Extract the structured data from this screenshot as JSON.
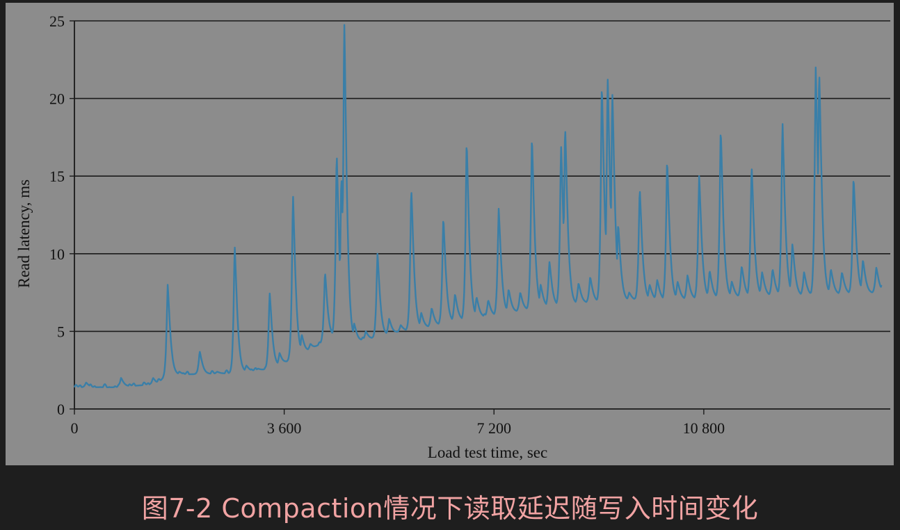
{
  "caption": "图7-2 Compaction情况下读取延迟随写入时间变化",
  "colors": {
    "background": "#1e1e1e",
    "panel": "#8c8c8c",
    "line": "#3a7fa8",
    "grid": "#1a1a1a",
    "caption": "#f1a3a3"
  },
  "chart_data": {
    "type": "line",
    "xlabel": "Load test time, sec",
    "ylabel": "Read latency, ms",
    "xlim": [
      0,
      14000
    ],
    "ylim": [
      0,
      25
    ],
    "xticks": [
      0,
      3600,
      7200,
      10800
    ],
    "xtick_labels": [
      "0",
      "3 600",
      "7 200",
      "10 800"
    ],
    "yticks": [
      0,
      5,
      10,
      15,
      20,
      25
    ],
    "ytick_labels": [
      "0",
      "5",
      "10",
      "15",
      "20",
      "25"
    ],
    "grid": "horizontal",
    "series": [
      {
        "baseline": [
          [
            0,
            1.4
          ],
          [
            700,
            1.4
          ],
          [
            1400,
            1.6
          ],
          [
            1600,
            2.2
          ],
          [
            2700,
            2.3
          ],
          [
            3400,
            2.6
          ],
          [
            3900,
            3.5
          ],
          [
            4500,
            4.8
          ],
          [
            4800,
            4.3
          ],
          [
            5200,
            4.6
          ],
          [
            5600,
            5.0
          ],
          [
            6000,
            5.2
          ],
          [
            6600,
            5.7
          ],
          [
            7200,
            6.0
          ],
          [
            7800,
            6.4
          ],
          [
            8400,
            6.7
          ],
          [
            9000,
            6.9
          ],
          [
            9600,
            7.0
          ],
          [
            10200,
            7.0
          ],
          [
            10800,
            7.1
          ],
          [
            11400,
            7.2
          ],
          [
            12000,
            7.3
          ],
          [
            12600,
            7.3
          ],
          [
            13200,
            7.4
          ],
          [
            14000,
            7.5
          ]
        ],
        "peaks": [
          [
            200,
            1.7
          ],
          [
            800,
            2.0
          ],
          [
            1350,
            2.0
          ],
          [
            1600,
            8.0
          ],
          [
            1800,
            2.4
          ],
          [
            2150,
            3.7
          ],
          [
            2450,
            2.4
          ],
          [
            2750,
            10.5
          ],
          [
            2950,
            2.8
          ],
          [
            3150,
            2.6
          ],
          [
            3350,
            7.5
          ],
          [
            3520,
            3.6
          ],
          [
            3750,
            13.8
          ],
          [
            3900,
            4.8
          ],
          [
            4050,
            4.2
          ],
          [
            4300,
            8.8
          ],
          [
            4500,
            16.5
          ],
          [
            4580,
            15.0
          ],
          [
            4630,
            25.0
          ],
          [
            4800,
            5.5
          ],
          [
            5000,
            5.0
          ],
          [
            5200,
            10.0
          ],
          [
            5400,
            5.8
          ],
          [
            5600,
            5.4
          ],
          [
            5780,
            14.2
          ],
          [
            5950,
            6.2
          ],
          [
            6130,
            6.5
          ],
          [
            6330,
            12.3
          ],
          [
            6530,
            7.4
          ],
          [
            6730,
            17.2
          ],
          [
            6900,
            7.2
          ],
          [
            7100,
            7.0
          ],
          [
            7280,
            12.9
          ],
          [
            7450,
            7.7
          ],
          [
            7650,
            7.5
          ],
          [
            7850,
            17.5
          ],
          [
            8000,
            8.0
          ],
          [
            8150,
            9.5
          ],
          [
            8350,
            17.0
          ],
          [
            8420,
            18.2
          ],
          [
            8650,
            8.1
          ],
          [
            8850,
            8.5
          ],
          [
            9050,
            20.9
          ],
          [
            9150,
            21.4
          ],
          [
            9230,
            20.4
          ],
          [
            9330,
            11.9
          ],
          [
            9520,
            7.5
          ],
          [
            9700,
            14.2
          ],
          [
            9870,
            8.0
          ],
          [
            10000,
            8.3
          ],
          [
            10170,
            16.0
          ],
          [
            10350,
            8.2
          ],
          [
            10520,
            8.6
          ],
          [
            10720,
            15.0
          ],
          [
            10900,
            8.9
          ],
          [
            11090,
            18.0
          ],
          [
            11280,
            8.2
          ],
          [
            11450,
            9.2
          ],
          [
            11620,
            15.7
          ],
          [
            11800,
            8.8
          ],
          [
            11980,
            9.0
          ],
          [
            12150,
            18.5
          ],
          [
            12320,
            10.6
          ],
          [
            12520,
            8.8
          ],
          [
            12720,
            22.0
          ],
          [
            12780,
            21.8
          ],
          [
            12980,
            9.0
          ],
          [
            13170,
            8.8
          ],
          [
            13370,
            14.9
          ],
          [
            13530,
            9.6
          ],
          [
            13760,
            9.1
          ],
          [
            13850,
            8.0
          ]
        ]
      }
    ]
  }
}
